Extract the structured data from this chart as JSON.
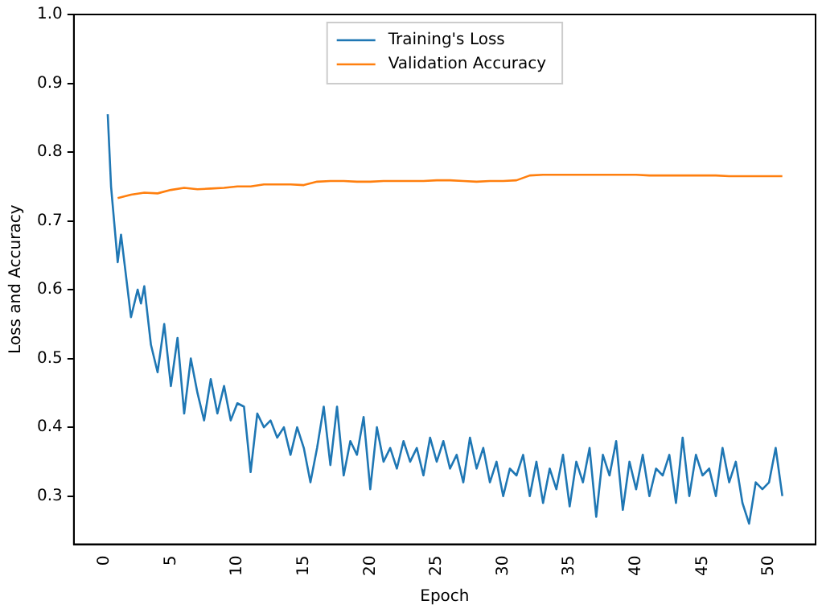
{
  "chart_data": {
    "type": "line",
    "xlabel": "Epoch",
    "ylabel": "Loss and Accuracy",
    "xlim": [
      -2.3,
      53.5
    ],
    "ylim": [
      0.23,
      1.0
    ],
    "xticks": [
      0,
      5,
      10,
      15,
      20,
      25,
      30,
      35,
      40,
      45,
      50
    ],
    "yticks": [
      0.3,
      0.4,
      0.5,
      0.6,
      0.7,
      0.8,
      0.9,
      {
        "value": 1,
        "label": "1.0"
      }
    ],
    "legend": "top",
    "grid": false,
    "marker": "none",
    "line_style": "solid",
    "series": [
      {
        "name": "Training's Loss",
        "color": "#1f77b4",
        "x": [
          0.25,
          0.5,
          1,
          1.25,
          1.5,
          2,
          2.5,
          2.75,
          3,
          3.5,
          4,
          4.5,
          5,
          5.5,
          6,
          6.5,
          7,
          7.5,
          8,
          8.5,
          9,
          9.5,
          10,
          10.5,
          11,
          11.5,
          12,
          12.5,
          13,
          13.5,
          14,
          14.5,
          15,
          15.5,
          16,
          16.5,
          17,
          17.5,
          18,
          18.5,
          19,
          19.5,
          20,
          20.5,
          21,
          21.5,
          22,
          22.5,
          23,
          23.5,
          24,
          24.5,
          25,
          25.5,
          26,
          26.5,
          27,
          27.5,
          28,
          28.5,
          29,
          29.5,
          30,
          30.5,
          31,
          31.5,
          32,
          32.5,
          33,
          33.5,
          34,
          34.5,
          35,
          35.5,
          36,
          36.5,
          37,
          37.5,
          38,
          38.5,
          39,
          39.5,
          40,
          40.5,
          41,
          41.5,
          42,
          42.5,
          43,
          43.5,
          44,
          44.5,
          45,
          45.5,
          46,
          46.5,
          47,
          47.5,
          48,
          48.5,
          49,
          49.5,
          50,
          50.5,
          51
        ],
        "values": [
          0.855,
          0.75,
          0.64,
          0.68,
          0.64,
          0.56,
          0.6,
          0.58,
          0.605,
          0.52,
          0.48,
          0.55,
          0.46,
          0.53,
          0.42,
          0.5,
          0.45,
          0.41,
          0.47,
          0.42,
          0.46,
          0.41,
          0.435,
          0.43,
          0.335,
          0.42,
          0.4,
          0.41,
          0.385,
          0.4,
          0.36,
          0.4,
          0.37,
          0.32,
          0.37,
          0.43,
          0.345,
          0.43,
          0.33,
          0.38,
          0.36,
          0.415,
          0.31,
          0.4,
          0.35,
          0.37,
          0.34,
          0.38,
          0.35,
          0.37,
          0.33,
          0.385,
          0.35,
          0.38,
          0.34,
          0.36,
          0.32,
          0.385,
          0.34,
          0.37,
          0.32,
          0.35,
          0.3,
          0.34,
          0.33,
          0.36,
          0.3,
          0.35,
          0.29,
          0.34,
          0.31,
          0.36,
          0.285,
          0.35,
          0.32,
          0.37,
          0.27,
          0.36,
          0.33,
          0.38,
          0.28,
          0.35,
          0.31,
          0.36,
          0.3,
          0.34,
          0.33,
          0.36,
          0.29,
          0.385,
          0.3,
          0.36,
          0.33,
          0.34,
          0.3,
          0.37,
          0.32,
          0.35,
          0.29,
          0.26,
          0.32,
          0.31,
          0.32,
          0.37,
          0.3
        ],
        "line_style": "solid"
      },
      {
        "name": "Validation Accuracy",
        "color": "#ff7f0e",
        "x": [
          1,
          2,
          3,
          4,
          5,
          6,
          7,
          8,
          9,
          10,
          11,
          12,
          13,
          14,
          15,
          16,
          17,
          18,
          19,
          20,
          21,
          22,
          23,
          24,
          25,
          26,
          27,
          28,
          29,
          30,
          31,
          32,
          33,
          34,
          35,
          36,
          37,
          38,
          39,
          40,
          41,
          42,
          43,
          44,
          45,
          46,
          47,
          48,
          49,
          50,
          51
        ],
        "values": [
          0.733,
          0.738,
          0.741,
          0.74,
          0.745,
          0.748,
          0.746,
          0.747,
          0.748,
          0.75,
          0.75,
          0.753,
          0.753,
          0.753,
          0.752,
          0.757,
          0.758,
          0.758,
          0.757,
          0.757,
          0.758,
          0.758,
          0.758,
          0.758,
          0.759,
          0.759,
          0.758,
          0.757,
          0.758,
          0.758,
          0.759,
          0.766,
          0.767,
          0.767,
          0.767,
          0.767,
          0.767,
          0.767,
          0.767,
          0.767,
          0.766,
          0.766,
          0.766,
          0.766,
          0.766,
          0.766,
          0.765,
          0.765,
          0.765,
          0.765,
          0.765
        ]
      }
    ]
  }
}
